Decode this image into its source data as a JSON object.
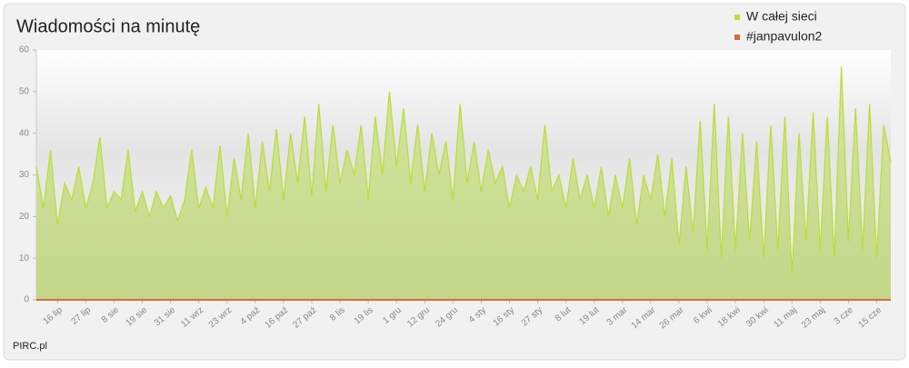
{
  "chart_data": {
    "type": "area",
    "title": "Wiadomości na minutę",
    "source": "PIRC.pl",
    "categories": [
      null,
      null,
      null,
      "16 lip",
      null,
      null,
      null,
      "27 lip",
      null,
      null,
      null,
      "8 sie",
      null,
      null,
      null,
      "19 sie",
      null,
      null,
      null,
      "31 sie",
      null,
      null,
      null,
      "11 wrz",
      null,
      null,
      null,
      "23 wrz",
      null,
      null,
      null,
      "4 paź",
      null,
      null,
      null,
      "16 paź",
      null,
      null,
      null,
      "27 paź",
      null,
      null,
      null,
      "8 lis",
      null,
      null,
      null,
      "19 lis",
      null,
      null,
      null,
      "1 gru",
      null,
      null,
      null,
      "12 gru",
      null,
      null,
      null,
      "24 gru",
      null,
      null,
      null,
      "4 sty",
      null,
      null,
      null,
      "16 sty",
      null,
      null,
      null,
      "27 sty",
      null,
      null,
      null,
      "8 lut",
      null,
      null,
      null,
      "19 lut",
      null,
      null,
      null,
      "3 mar",
      null,
      null,
      null,
      "14 mar",
      null,
      null,
      null,
      "26 mar",
      null,
      null,
      null,
      "6 kwi",
      null,
      null,
      null,
      "18 kwi",
      null,
      null,
      null,
      "30 kwi",
      null,
      null,
      null,
      "11 maj",
      null,
      null,
      null,
      "23 maj",
      null,
      null,
      null,
      "3 cze",
      null,
      null,
      null,
      "15 cze",
      null,
      null
    ],
    "series": [
      {
        "name": "W całej sieci",
        "color": "#bcdd3c",
        "values": [
          32,
          22,
          36,
          18,
          28,
          24,
          32,
          22,
          28,
          39,
          22,
          26,
          24,
          36,
          21,
          26,
          20,
          26,
          22,
          25,
          19,
          24,
          36,
          22,
          27,
          22,
          37,
          20,
          34,
          24,
          40,
          22,
          38,
          26,
          41,
          24,
          40,
          28,
          44,
          25,
          47,
          26,
          42,
          28,
          36,
          30,
          42,
          24,
          44,
          30,
          50,
          32,
          46,
          28,
          42,
          26,
          40,
          30,
          38,
          24,
          47,
          28,
          38,
          26,
          36,
          28,
          32,
          22,
          30,
          26,
          32,
          24,
          42,
          26,
          30,
          22,
          34,
          24,
          30,
          22,
          32,
          20,
          30,
          22,
          34,
          18,
          30,
          24,
          35,
          20,
          34,
          13,
          32,
          16,
          43,
          12,
          47,
          10,
          44,
          12,
          40,
          14,
          38,
          10,
          42,
          12,
          44,
          6,
          40,
          14,
          45,
          12,
          44,
          10,
          56,
          14,
          46,
          12,
          47,
          10,
          42,
          33
        ]
      },
      {
        "name": "#janpavulon2",
        "color": "#d9693a",
        "values": [
          0,
          0,
          0,
          0,
          0,
          0,
          0,
          0,
          0,
          0,
          0,
          0,
          0,
          0,
          0,
          0,
          0,
          0,
          0,
          0,
          0,
          0,
          0,
          0,
          0,
          0,
          0,
          0,
          0,
          0,
          0,
          0,
          0,
          0,
          0,
          0,
          0,
          0,
          0,
          0,
          0,
          0,
          0,
          0,
          0,
          0,
          0,
          0,
          0,
          0,
          0,
          0,
          0,
          0,
          0,
          0,
          0,
          0,
          0,
          0,
          0,
          0,
          0,
          0,
          0,
          0,
          0,
          0,
          0,
          0,
          0,
          0,
          0,
          0,
          0,
          0,
          0,
          0,
          0,
          0,
          0,
          0,
          0,
          0,
          0,
          0,
          0,
          0,
          0,
          0,
          0,
          0,
          0,
          0,
          0,
          0,
          0,
          0,
          0,
          0,
          0,
          0,
          0,
          0,
          0,
          0,
          0,
          0,
          0,
          0,
          0,
          0,
          0,
          0,
          0,
          0,
          0,
          0,
          0,
          0,
          0,
          0
        ]
      }
    ],
    "ylim": [
      0,
      60
    ],
    "yticks": [
      0,
      10,
      20,
      30,
      40,
      50,
      60
    ]
  }
}
